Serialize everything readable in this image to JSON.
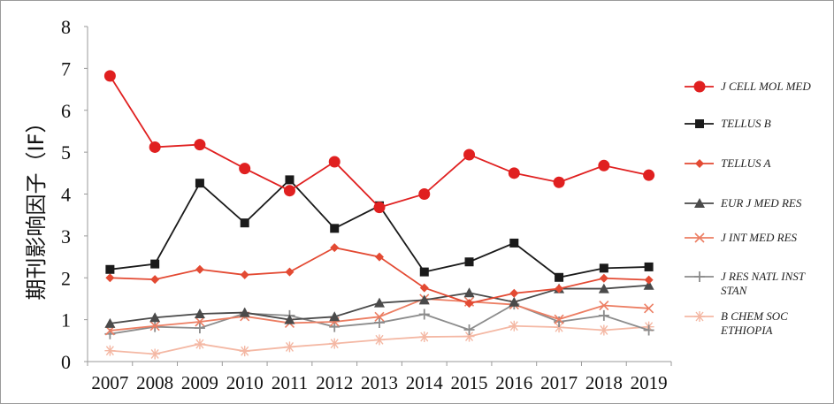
{
  "chart_data": {
    "type": "line",
    "ylabel": "期刊影响因子（IF）",
    "ylim": [
      0,
      8
    ],
    "yticks": [
      "0",
      "1",
      "2",
      "3",
      "4",
      "5",
      "6",
      "7",
      "8"
    ],
    "categories": [
      "2007",
      "2008",
      "2009",
      "2010",
      "2011",
      "2012",
      "2013",
      "2014",
      "2015",
      "2016",
      "2017",
      "2018",
      "2019"
    ],
    "grid": false,
    "legend": "right",
    "series": [
      {
        "name": "J CELL MOL MED",
        "legend_lines": [
          "J CELL MOL MED"
        ],
        "marker": "circle",
        "color": "#e02020",
        "values": [
          6.82,
          5.12,
          5.18,
          4.61,
          4.08,
          4.77,
          3.68,
          4.0,
          4.94,
          4.5,
          4.28,
          4.68,
          4.45
        ]
      },
      {
        "name": "TELLUS B",
        "legend_lines": [
          "TELLUS B"
        ],
        "marker": "square",
        "color": "#1a1a1a",
        "values": [
          2.2,
          2.33,
          4.26,
          3.31,
          4.34,
          3.18,
          3.72,
          2.14,
          2.38,
          2.83,
          2.01,
          2.23,
          2.26
        ]
      },
      {
        "name": "TELLUS A",
        "legend_lines": [
          "TELLUS A"
        ],
        "marker": "diamond",
        "color": "#e34a33",
        "values": [
          2.0,
          1.96,
          2.2,
          2.07,
          2.14,
          2.72,
          2.5,
          1.76,
          1.39,
          1.63,
          1.74,
          1.99,
          1.95
        ]
      },
      {
        "name": "EUR J MED RES",
        "legend_lines": [
          "EUR J MED RES"
        ],
        "marker": "triangle",
        "color": "#4a4a4a",
        "values": [
          0.91,
          1.05,
          1.14,
          1.17,
          1.0,
          1.07,
          1.4,
          1.47,
          1.64,
          1.42,
          1.74,
          1.74,
          1.82
        ]
      },
      {
        "name": "J INT MED RES",
        "legend_lines": [
          "J INT MED RES"
        ],
        "marker": "x",
        "color": "#ec7e63",
        "values": [
          0.74,
          0.85,
          0.95,
          1.08,
          0.92,
          0.95,
          1.07,
          1.5,
          1.43,
          1.36,
          1.01,
          1.34,
          1.27
        ]
      },
      {
        "name": "J RES NATL INST STAN",
        "legend_lines": [
          "J RES NATL INST",
          "STAN"
        ],
        "marker": "plus",
        "color": "#8c8c8c",
        "values": [
          0.66,
          0.83,
          0.8,
          1.15,
          1.1,
          0.83,
          0.93,
          1.13,
          0.76,
          1.37,
          0.95,
          1.1,
          0.75
        ]
      },
      {
        "name": "B CHEM SOC ETHIOPIA",
        "legend_lines": [
          "B CHEM SOC",
          "ETHIOPIA"
        ],
        "marker": "asterisk",
        "color": "#f4b8a4",
        "values": [
          0.26,
          0.18,
          0.42,
          0.25,
          0.35,
          0.43,
          0.52,
          0.59,
          0.6,
          0.85,
          0.82,
          0.75,
          0.83
        ]
      }
    ]
  }
}
